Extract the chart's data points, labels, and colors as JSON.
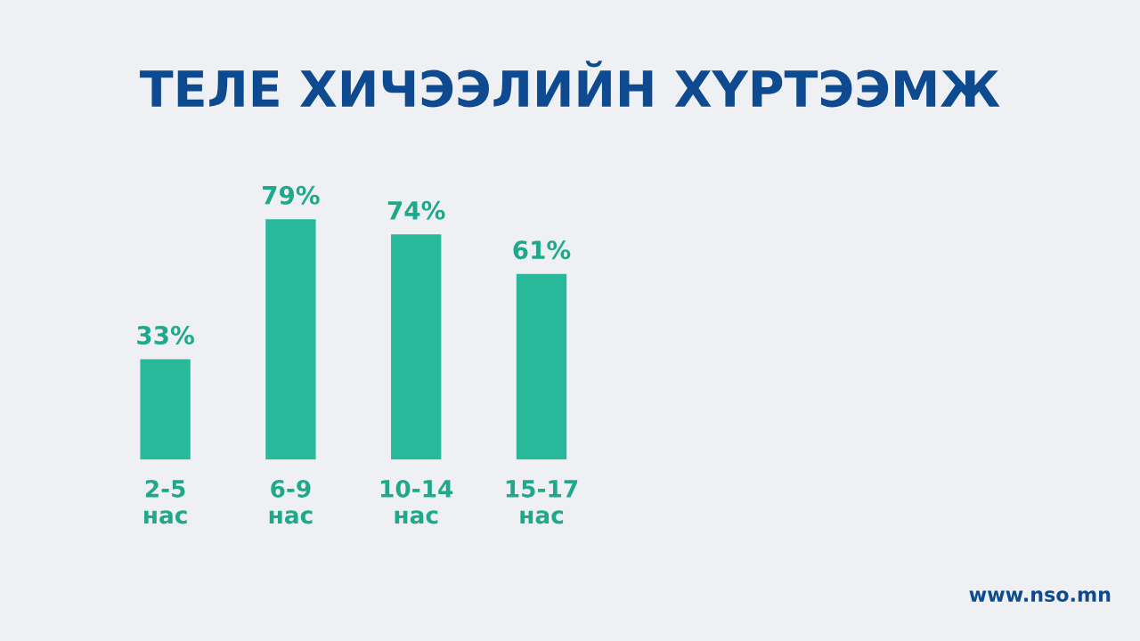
{
  "chart_data": {
    "type": "bar",
    "title": "ТЕЛЕ ХИЧЭЭЛИЙН ХҮРТЭЭМЖ",
    "categories": [
      "2-5\nнас",
      "6-9\nнас",
      "10-14\nнас",
      "15-17\nнас"
    ],
    "values": [
      33,
      79,
      74,
      61
    ],
    "color": "#27b99a",
    "value_labels": [
      "33%",
      "79%",
      "74%",
      "61%"
    ],
    "annotations": [
      "www.nso.mn"
    ]
  }
}
